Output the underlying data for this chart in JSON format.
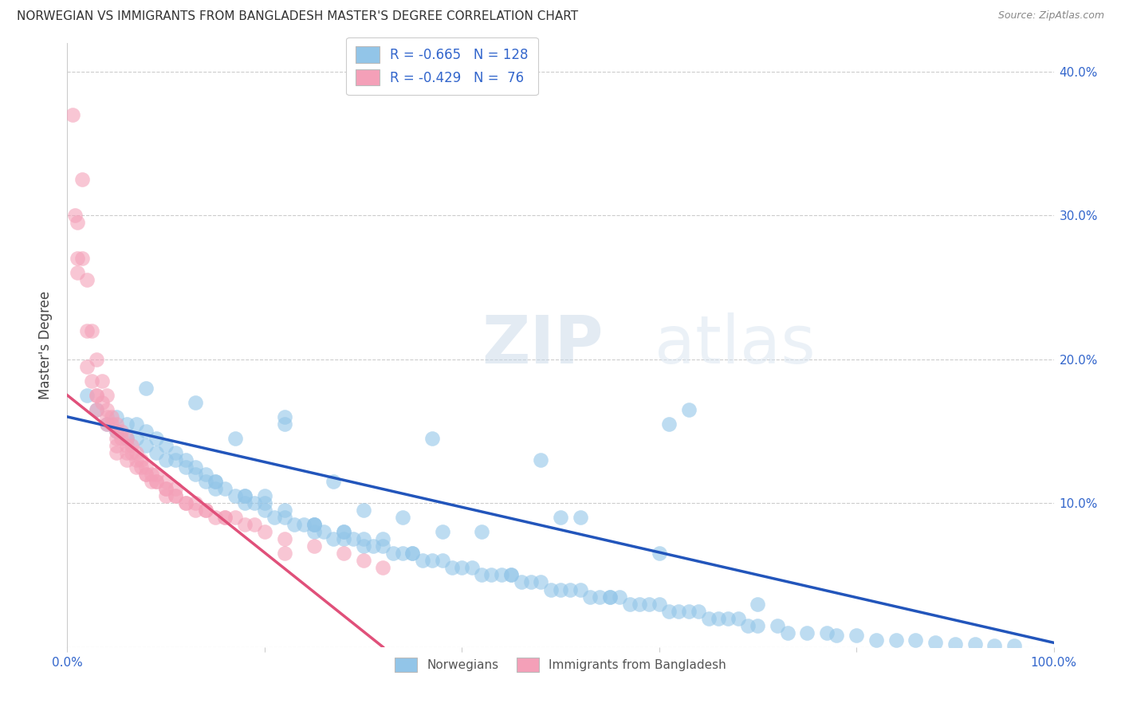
{
  "title": "NORWEGIAN VS IMMIGRANTS FROM BANGLADESH MASTER'S DEGREE CORRELATION CHART",
  "source": "Source: ZipAtlas.com",
  "ylabel": "Master's Degree",
  "watermark": "ZIPatlas",
  "xlim": [
    0.0,
    1.0
  ],
  "ylim": [
    0.0,
    0.42
  ],
  "xticks": [
    0.0,
    0.2,
    0.4,
    0.6,
    0.8,
    1.0
  ],
  "xtick_labels": [
    "0.0%",
    "",
    "",
    "",
    "",
    "100.0%"
  ],
  "yticks": [
    0.0,
    0.1,
    0.2,
    0.3,
    0.4
  ],
  "ytick_labels_right": [
    "",
    "10.0%",
    "20.0%",
    "30.0%",
    "40.0%"
  ],
  "legend_labels": [
    "Norwegians",
    "Immigrants from Bangladesh"
  ],
  "blue_R": -0.665,
  "blue_N": 128,
  "pink_R": -0.429,
  "pink_N": 76,
  "blue_color": "#92C5E8",
  "pink_color": "#F4A0B8",
  "blue_line_color": "#2255BB",
  "pink_line_color": "#E0507A",
  "background_color": "#FFFFFF",
  "grid_color": "#CCCCCC",
  "title_color": "#333333",
  "axis_color": "#3366CC",
  "blue_line_x0": 0.0,
  "blue_line_y0": 0.16,
  "blue_line_x1": 1.0,
  "blue_line_y1": 0.003,
  "pink_line_x0": 0.0,
  "pink_line_y0": 0.175,
  "pink_line_x1": 0.32,
  "pink_line_y1": 0.0,
  "blue_scatter_x": [
    0.02,
    0.03,
    0.04,
    0.05,
    0.05,
    0.06,
    0.06,
    0.07,
    0.07,
    0.08,
    0.08,
    0.09,
    0.09,
    0.1,
    0.1,
    0.11,
    0.11,
    0.12,
    0.12,
    0.13,
    0.13,
    0.14,
    0.14,
    0.15,
    0.15,
    0.16,
    0.17,
    0.18,
    0.18,
    0.19,
    0.2,
    0.2,
    0.21,
    0.22,
    0.22,
    0.23,
    0.24,
    0.25,
    0.25,
    0.26,
    0.27,
    0.28,
    0.28,
    0.29,
    0.3,
    0.3,
    0.31,
    0.32,
    0.33,
    0.34,
    0.35,
    0.36,
    0.37,
    0.38,
    0.39,
    0.4,
    0.41,
    0.42,
    0.43,
    0.44,
    0.45,
    0.46,
    0.47,
    0.48,
    0.49,
    0.5,
    0.51,
    0.52,
    0.53,
    0.54,
    0.55,
    0.56,
    0.57,
    0.58,
    0.59,
    0.6,
    0.61,
    0.62,
    0.63,
    0.64,
    0.65,
    0.66,
    0.67,
    0.68,
    0.69,
    0.7,
    0.72,
    0.73,
    0.75,
    0.77,
    0.78,
    0.8,
    0.82,
    0.84,
    0.86,
    0.88,
    0.9,
    0.92,
    0.94,
    0.96,
    0.37,
    0.25,
    0.52,
    0.48,
    0.63,
    0.61,
    0.5,
    0.3,
    0.22,
    0.15,
    0.18,
    0.08,
    0.13,
    0.2,
    0.28,
    0.32,
    0.35,
    0.45,
    0.38,
    0.6,
    0.25,
    0.55,
    0.7,
    0.42,
    0.17,
    0.22,
    0.27,
    0.34
  ],
  "blue_scatter_y": [
    0.175,
    0.165,
    0.155,
    0.15,
    0.16,
    0.145,
    0.155,
    0.145,
    0.155,
    0.14,
    0.15,
    0.135,
    0.145,
    0.13,
    0.14,
    0.13,
    0.135,
    0.125,
    0.13,
    0.12,
    0.125,
    0.115,
    0.12,
    0.11,
    0.115,
    0.11,
    0.105,
    0.1,
    0.105,
    0.1,
    0.095,
    0.105,
    0.09,
    0.09,
    0.095,
    0.085,
    0.085,
    0.08,
    0.085,
    0.08,
    0.075,
    0.075,
    0.08,
    0.075,
    0.07,
    0.075,
    0.07,
    0.07,
    0.065,
    0.065,
    0.065,
    0.06,
    0.06,
    0.06,
    0.055,
    0.055,
    0.055,
    0.05,
    0.05,
    0.05,
    0.05,
    0.045,
    0.045,
    0.045,
    0.04,
    0.04,
    0.04,
    0.04,
    0.035,
    0.035,
    0.035,
    0.035,
    0.03,
    0.03,
    0.03,
    0.03,
    0.025,
    0.025,
    0.025,
    0.025,
    0.02,
    0.02,
    0.02,
    0.02,
    0.015,
    0.015,
    0.015,
    0.01,
    0.01,
    0.01,
    0.008,
    0.008,
    0.005,
    0.005,
    0.005,
    0.003,
    0.002,
    0.002,
    0.001,
    0.001,
    0.145,
    0.085,
    0.09,
    0.13,
    0.165,
    0.155,
    0.09,
    0.095,
    0.16,
    0.115,
    0.105,
    0.18,
    0.17,
    0.1,
    0.08,
    0.075,
    0.065,
    0.05,
    0.08,
    0.065,
    0.085,
    0.035,
    0.03,
    0.08,
    0.145,
    0.155,
    0.115,
    0.09
  ],
  "pink_scatter_x": [
    0.005,
    0.008,
    0.01,
    0.01,
    0.01,
    0.015,
    0.015,
    0.02,
    0.02,
    0.02,
    0.025,
    0.025,
    0.03,
    0.03,
    0.03,
    0.035,
    0.035,
    0.04,
    0.04,
    0.04,
    0.045,
    0.045,
    0.05,
    0.05,
    0.05,
    0.055,
    0.055,
    0.06,
    0.06,
    0.065,
    0.065,
    0.07,
    0.07,
    0.075,
    0.075,
    0.08,
    0.08,
    0.085,
    0.085,
    0.09,
    0.09,
    0.1,
    0.1,
    0.11,
    0.11,
    0.12,
    0.13,
    0.14,
    0.15,
    0.16,
    0.18,
    0.2,
    0.22,
    0.25,
    0.28,
    0.3,
    0.32,
    0.16,
    0.19,
    0.13,
    0.1,
    0.07,
    0.05,
    0.06,
    0.08,
    0.09,
    0.1,
    0.11,
    0.12,
    0.14,
    0.17,
    0.22,
    0.03,
    0.04,
    0.05,
    0.06
  ],
  "pink_scatter_y": [
    0.37,
    0.3,
    0.27,
    0.295,
    0.26,
    0.325,
    0.27,
    0.255,
    0.22,
    0.195,
    0.185,
    0.22,
    0.175,
    0.2,
    0.175,
    0.185,
    0.17,
    0.175,
    0.16,
    0.165,
    0.155,
    0.16,
    0.15,
    0.155,
    0.14,
    0.145,
    0.15,
    0.14,
    0.145,
    0.135,
    0.14,
    0.13,
    0.135,
    0.125,
    0.13,
    0.12,
    0.125,
    0.115,
    0.12,
    0.115,
    0.12,
    0.11,
    0.115,
    0.105,
    0.11,
    0.1,
    0.1,
    0.095,
    0.09,
    0.09,
    0.085,
    0.08,
    0.075,
    0.07,
    0.065,
    0.06,
    0.055,
    0.09,
    0.085,
    0.095,
    0.11,
    0.125,
    0.135,
    0.13,
    0.12,
    0.115,
    0.105,
    0.105,
    0.1,
    0.095,
    0.09,
    0.065,
    0.165,
    0.155,
    0.145,
    0.135
  ]
}
